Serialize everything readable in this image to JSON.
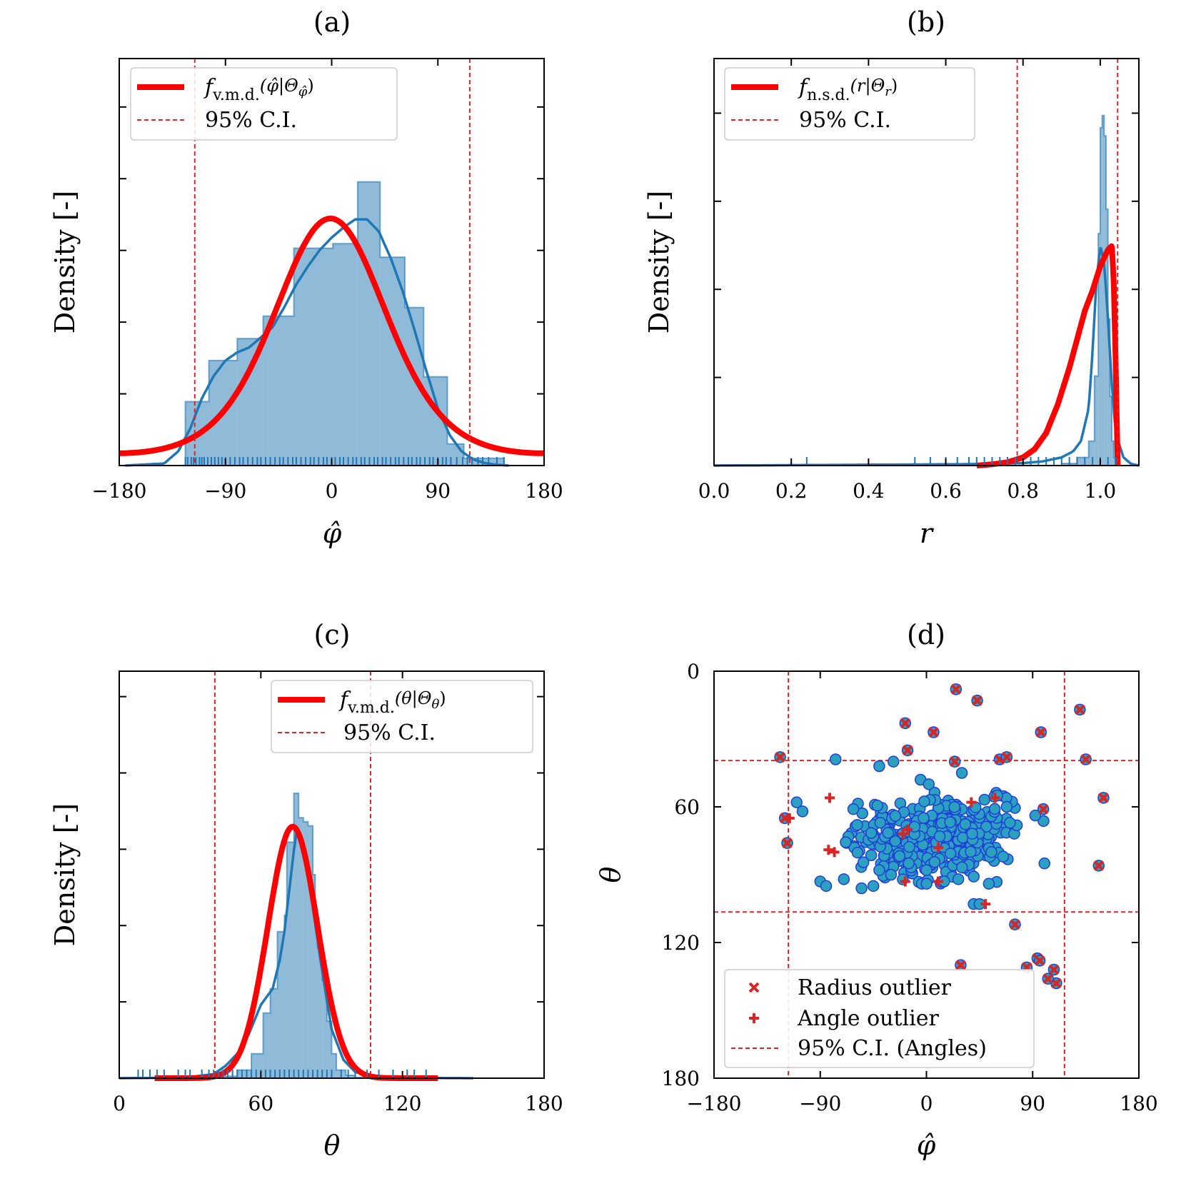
{
  "chart_data": [
    {
      "panel": "a",
      "type": "histogram",
      "title": "(a)",
      "xlabel": "φ̂",
      "ylabel": "Density [-]",
      "xlim": [
        -180,
        180
      ],
      "xticks": [
        -180,
        -90,
        0,
        90,
        180
      ],
      "xtick_labels": [
        "−180",
        "−90",
        "0",
        "90",
        "180"
      ],
      "ylim": [
        0,
        1.0
      ],
      "y_ticks": [
        0.1762,
        0.3524,
        0.5286,
        0.7048,
        0.881
      ],
      "ci": [
        -116,
        117
      ],
      "hist": {
        "edges": [
          -124,
          -104,
          -80,
          -58,
          -32,
          1,
          22,
          41,
          62,
          78,
          98,
          112,
          146
        ],
        "values": [
          0.157,
          0.258,
          0.312,
          0.367,
          0.534,
          0.545,
          0.697,
          0.512,
          0.388,
          0.218,
          0.053,
          0.018
        ]
      },
      "kde": {
        "x": [
          -175,
          -142,
          -130,
          -120,
          -110,
          -100,
          -90,
          -80,
          -70,
          -60,
          -50,
          -40,
          -30,
          -20,
          -10,
          0,
          10,
          20,
          30,
          40,
          50,
          60,
          70,
          80,
          90,
          100,
          110,
          120,
          130,
          140,
          150
        ],
        "y": [
          0.0,
          0.005,
          0.035,
          0.09,
          0.165,
          0.22,
          0.258,
          0.278,
          0.29,
          0.315,
          0.34,
          0.39,
          0.445,
          0.49,
          0.53,
          0.56,
          0.585,
          0.605,
          0.605,
          0.575,
          0.51,
          0.43,
          0.335,
          0.235,
          0.14,
          0.075,
          0.035,
          0.015,
          0.006,
          0.002,
          0.0
        ]
      },
      "fit": {
        "type": "von_mises",
        "mu": -1,
        "kappa": 1.5,
        "peak": 0.607,
        "x_range": [
          -180,
          180
        ]
      },
      "rug_x": [
        -124,
        -122,
        -119,
        -117,
        -115,
        -112,
        -110,
        -108,
        -105,
        -102,
        -99,
        -96,
        -93,
        -90,
        -86,
        -82,
        -78,
        -75,
        -71,
        -67,
        -63,
        -60,
        -56,
        -52,
        -48,
        -44,
        -41,
        -37,
        -33,
        -30,
        -26,
        -22,
        -18,
        -15,
        -11,
        -7,
        -4,
        0,
        3,
        7,
        10,
        14,
        18,
        21,
        25,
        28,
        32,
        36,
        39,
        43,
        46,
        50,
        54,
        57,
        61,
        65,
        68,
        72,
        75,
        79,
        83,
        86,
        90,
        94,
        97,
        101,
        106,
        111,
        115,
        119,
        124,
        128,
        133,
        140,
        146
      ],
      "legend": {
        "fit_label": "f",
        "fit_sub": "v.m.d.",
        "fit_args": "(φ̂|Θ",
        "fit_args_sub": "φ̂",
        "fit_close": ")",
        "ci_label": "95% C.I."
      }
    },
    {
      "panel": "b",
      "type": "histogram",
      "title": "(b)",
      "xlabel": "r",
      "ylabel": "Density [-]",
      "xlim": [
        0.0,
        1.1
      ],
      "xticks": [
        0.0,
        0.2,
        0.4,
        0.6,
        0.8,
        1.0
      ],
      "xtick_labels": [
        "0.0",
        "0.2",
        "0.4",
        "0.6",
        "0.8",
        "1.0"
      ],
      "ylim": [
        0,
        1.0
      ],
      "y_ticks": [
        0.2165,
        0.4329,
        0.6494,
        0.8658
      ],
      "ci": [
        0.785,
        1.045
      ],
      "hist": {
        "edges": [
          0.9,
          0.94,
          0.97,
          0.985,
          0.995,
          1.0,
          1.005,
          1.01,
          1.015,
          1.02,
          1.025,
          1.03,
          1.035,
          1.04,
          1.05
        ],
        "values": [
          0.005,
          0.02,
          0.06,
          0.22,
          0.57,
          0.83,
          0.86,
          0.81,
          0.63,
          0.36,
          0.17,
          0.06,
          0.02,
          0.005
        ]
      },
      "kde": {
        "x": [
          0.0,
          0.2,
          0.4,
          0.6,
          0.7,
          0.8,
          0.85,
          0.9,
          0.93,
          0.95,
          0.97,
          0.98,
          0.99,
          1.0,
          1.01,
          1.02,
          1.03,
          1.04,
          1.06,
          1.08,
          1.1
        ],
        "y": [
          0.0,
          0.001,
          0.002,
          0.003,
          0.004,
          0.006,
          0.01,
          0.02,
          0.035,
          0.06,
          0.14,
          0.28,
          0.45,
          0.54,
          0.5,
          0.36,
          0.2,
          0.08,
          0.02,
          0.004,
          0.0
        ]
      },
      "fit": {
        "x": [
          0.68,
          0.72,
          0.76,
          0.8,
          0.83,
          0.86,
          0.89,
          0.92,
          0.94,
          0.96,
          0.98,
          0.99,
          1.0,
          1.01,
          1.02,
          1.03,
          1.035,
          1.04,
          1.045
        ],
        "y": [
          0.0,
          0.003,
          0.008,
          0.02,
          0.04,
          0.08,
          0.15,
          0.24,
          0.31,
          0.38,
          0.43,
          0.46,
          0.49,
          0.51,
          0.53,
          0.54,
          0.45,
          0.25,
          0.0
        ]
      },
      "rug_x": [
        0.24,
        0.52,
        0.56,
        0.6,
        0.63,
        0.66,
        0.68,
        0.7,
        0.72,
        0.74,
        0.76,
        0.78,
        0.8,
        0.82,
        0.84,
        0.86,
        0.88,
        0.9,
        0.92,
        0.94,
        0.96,
        0.98,
        1.0,
        1.02,
        1.04
      ],
      "legend": {
        "fit_label": "f",
        "fit_sub": "n.s.d.",
        "fit_args": "(r|Θ",
        "fit_args_sub": "r",
        "fit_close": ")",
        "ci_label": "95% C.I."
      }
    },
    {
      "panel": "c",
      "type": "histogram",
      "title": "(c)",
      "xlabel": "θ",
      "ylabel": "Density [-]",
      "xlim": [
        0,
        180
      ],
      "xticks": [
        0,
        60,
        120,
        180
      ],
      "xtick_labels": [
        "0",
        "60",
        "120",
        "180"
      ],
      "ylim": [
        0,
        1.0
      ],
      "y_ticks": [
        0.1875,
        0.375,
        0.5625,
        0.75,
        0.9375
      ],
      "ci": [
        40.5,
        106.5
      ],
      "hist": {
        "edges": [
          40,
          50,
          56,
          61,
          64,
          67,
          70,
          71,
          74,
          76,
          78,
          80,
          82,
          83,
          84,
          86,
          88,
          90,
          92,
          96,
          100,
          106
        ],
        "values": [
          0.005,
          0.02,
          0.06,
          0.16,
          0.22,
          0.36,
          0.4,
          0.58,
          0.7,
          0.64,
          0.63,
          0.62,
          0.5,
          0.39,
          0.32,
          0.24,
          0.14,
          0.06,
          0.02,
          0.007,
          0.002
        ]
      },
      "kde": {
        "x": [
          0,
          20,
          30,
          40,
          45,
          50,
          55,
          60,
          65,
          68,
          70,
          72,
          74,
          75,
          76,
          78,
          80,
          82,
          85,
          88,
          90,
          95,
          100,
          110,
          120,
          130,
          140,
          150
        ],
        "y": [
          0.0,
          0.001,
          0.003,
          0.01,
          0.03,
          0.06,
          0.11,
          0.18,
          0.22,
          0.29,
          0.36,
          0.46,
          0.56,
          0.6,
          0.6,
          0.57,
          0.5,
          0.42,
          0.3,
          0.19,
          0.12,
          0.045,
          0.015,
          0.004,
          0.001,
          0.0005,
          0.0002,
          0.0
        ]
      },
      "fit": {
        "type": "gaussian",
        "mu": 73.5,
        "sigma": 10.5,
        "peak": 0.618,
        "x_range": [
          15,
          135
        ]
      },
      "rug_x": [
        8,
        10,
        13,
        16,
        19,
        25,
        28,
        30,
        35,
        38,
        40,
        42,
        44,
        46,
        48,
        50,
        52,
        54,
        56,
        58,
        60,
        62,
        64,
        66,
        68,
        70,
        72,
        74,
        76,
        78,
        80,
        82,
        84,
        86,
        88,
        90,
        94,
        97,
        100,
        105,
        110,
        116,
        122,
        125,
        130
      ],
      "legend": {
        "fit_label": "f",
        "fit_sub": "v.m.d.",
        "fit_args": "(θ|Θ",
        "fit_args_sub": "θ",
        "fit_close": ")",
        "ci_label": "95% C.I."
      }
    },
    {
      "panel": "d",
      "type": "scatter",
      "title": "(d)",
      "xlabel": "φ̂",
      "ylabel": "θ",
      "xlim": [
        -180,
        180
      ],
      "ylim": [
        0,
        180
      ],
      "y_inverted": true,
      "xticks": [
        -180,
        -90,
        0,
        90,
        180
      ],
      "xtick_labels": [
        "−180",
        "−90",
        "0",
        "90",
        "180"
      ],
      "yticks": [
        0,
        60,
        120,
        180
      ],
      "ytick_labels": [
        "0",
        "60",
        "120",
        "180"
      ],
      "ci_phi": [
        -117,
        117
      ],
      "ci_theta": [
        39.5,
        106.5
      ],
      "cluster": {
        "center_phi": 5,
        "center_theta": 74,
        "spread_phi": 55,
        "spread_theta": 11,
        "count": 420
      },
      "extra_points": [
        [
          -77,
          39
        ],
        [
          -28,
          40
        ],
        [
          -5,
          48
        ],
        [
          2,
          50
        ],
        [
          -40,
          42
        ],
        [
          -62,
          61
        ],
        [
          -45,
          95
        ],
        [
          -55,
          96
        ],
        [
          -90,
          93
        ],
        [
          -85,
          95
        ],
        [
          -70,
          92
        ],
        [
          -40,
          88
        ],
        [
          -30,
          90
        ],
        [
          -15,
          85
        ],
        [
          0,
          88
        ],
        [
          15,
          93
        ],
        [
          27,
          92
        ],
        [
          55,
          80
        ],
        [
          65,
          82
        ],
        [
          100,
          85
        ],
        [
          40,
          103
        ],
        [
          45,
          103
        ],
        [
          30,
          45
        ],
        [
          60,
          55
        ],
        [
          68,
          60
        ],
        [
          -110,
          58
        ],
        [
          -105,
          62
        ]
      ],
      "radius_outliers": [
        [
          25,
          8
        ],
        [
          43,
          13
        ],
        [
          -18,
          23
        ],
        [
          6,
          27
        ],
        [
          -16,
          35
        ],
        [
          97,
          27
        ],
        [
          130,
          17
        ],
        [
          -124,
          38
        ],
        [
          24,
          40
        ],
        [
          62,
          39
        ],
        [
          68,
          38
        ],
        [
          135,
          39
        ],
        [
          150,
          56
        ],
        [
          -120,
          65
        ],
        [
          -118,
          76
        ],
        [
          99,
          61
        ],
        [
          146,
          86
        ],
        [
          29,
          130
        ],
        [
          75,
          112
        ],
        [
          85,
          131
        ],
        [
          94,
          127
        ],
        [
          96,
          128
        ],
        [
          108,
          132
        ],
        [
          110,
          138
        ],
        [
          103,
          136
        ]
      ],
      "angle_outliers": [
        [
          -116,
          65
        ],
        [
          -82,
          56
        ],
        [
          -83,
          79
        ],
        [
          -78,
          80
        ],
        [
          -18,
          93
        ],
        [
          -20,
          72
        ],
        [
          10,
          78
        ],
        [
          10,
          93
        ],
        [
          50,
          103
        ],
        [
          -16,
          70
        ],
        [
          58,
          56
        ],
        [
          38,
          58
        ]
      ],
      "legend": {
        "radius": "Radius outlier",
        "angle": "Angle outlier",
        "ci": "95% C.I. (Angles)"
      }
    }
  ]
}
